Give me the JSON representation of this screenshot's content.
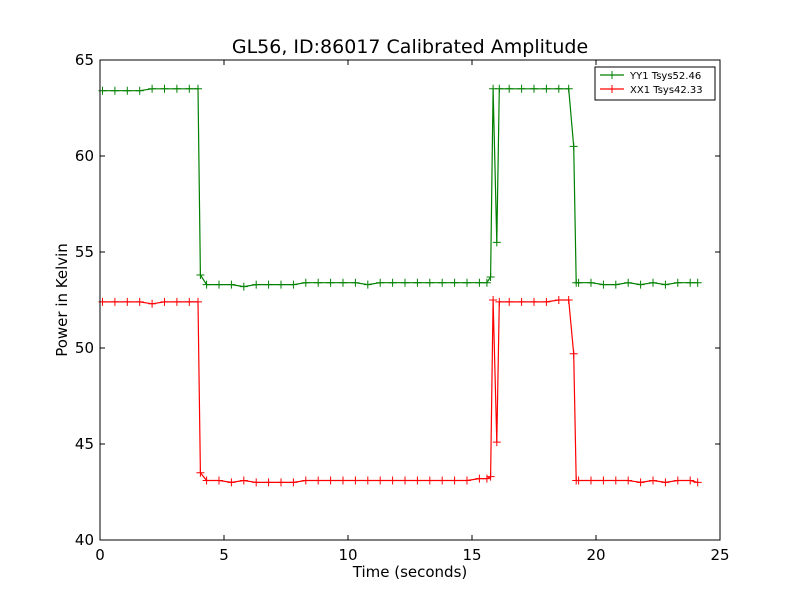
{
  "chart_data": {
    "type": "line",
    "title": "GL56, ID:86017 Calibrated Amplitude",
    "xlabel": "Time (seconds)",
    "ylabel": "Power in Kelvin",
    "xlim": [
      0,
      25
    ],
    "ylim": [
      40,
      65
    ],
    "xticks": [
      0,
      5,
      10,
      15,
      20,
      25
    ],
    "yticks": [
      40,
      45,
      50,
      55,
      60,
      65
    ],
    "grid": false,
    "legend_position": "top-right",
    "series": [
      {
        "name": "YY1 Tsys52.46",
        "color": "#008000",
        "marker": "+",
        "x": [
          0.1,
          0.6,
          1.1,
          1.6,
          2.1,
          2.6,
          3.1,
          3.6,
          3.95,
          4.05,
          4.3,
          4.8,
          5.3,
          5.8,
          6.3,
          6.8,
          7.3,
          7.8,
          8.3,
          8.8,
          9.3,
          9.8,
          10.3,
          10.8,
          11.3,
          11.8,
          12.3,
          12.8,
          13.3,
          13.8,
          14.3,
          14.8,
          15.3,
          15.6,
          15.75,
          15.85,
          16.0,
          16.1,
          16.5,
          17.0,
          17.5,
          18.0,
          18.5,
          18.9,
          19.1,
          19.2,
          19.3,
          19.8,
          20.3,
          20.8,
          21.3,
          21.8,
          22.3,
          22.8,
          23.3,
          23.8,
          24.1
        ],
        "y": [
          63.4,
          63.4,
          63.4,
          63.4,
          63.5,
          63.5,
          63.5,
          63.5,
          63.5,
          53.8,
          53.3,
          53.3,
          53.3,
          53.2,
          53.3,
          53.3,
          53.3,
          53.3,
          53.4,
          53.4,
          53.4,
          53.4,
          53.4,
          53.3,
          53.4,
          53.4,
          53.4,
          53.4,
          53.4,
          53.4,
          53.4,
          53.4,
          53.4,
          53.4,
          53.7,
          63.5,
          55.5,
          63.5,
          63.5,
          63.5,
          63.5,
          63.5,
          63.5,
          63.5,
          60.5,
          53.4,
          53.4,
          53.4,
          53.3,
          53.3,
          53.4,
          53.3,
          53.4,
          53.3,
          53.4,
          53.4,
          53.4
        ]
      },
      {
        "name": "XX1 Tsys42.33",
        "color": "#ff0000",
        "marker": "+",
        "x": [
          0.1,
          0.6,
          1.1,
          1.6,
          2.1,
          2.6,
          3.1,
          3.6,
          3.95,
          4.05,
          4.3,
          4.8,
          5.3,
          5.8,
          6.3,
          6.8,
          7.3,
          7.8,
          8.3,
          8.8,
          9.3,
          9.8,
          10.3,
          10.8,
          11.3,
          11.8,
          12.3,
          12.8,
          13.3,
          13.8,
          14.3,
          14.8,
          15.3,
          15.6,
          15.75,
          15.85,
          16.0,
          16.1,
          16.5,
          17.0,
          17.5,
          18.0,
          18.5,
          18.9,
          19.1,
          19.2,
          19.3,
          19.8,
          20.3,
          20.8,
          21.3,
          21.8,
          22.3,
          22.8,
          23.3,
          23.8,
          24.1
        ],
        "y": [
          52.4,
          52.4,
          52.4,
          52.4,
          52.3,
          52.4,
          52.4,
          52.4,
          52.4,
          43.5,
          43.1,
          43.1,
          43.0,
          43.1,
          43.0,
          43.0,
          43.0,
          43.0,
          43.1,
          43.1,
          43.1,
          43.1,
          43.1,
          43.1,
          43.1,
          43.1,
          43.1,
          43.1,
          43.1,
          43.1,
          43.1,
          43.1,
          43.2,
          43.2,
          43.3,
          52.5,
          45.1,
          52.4,
          52.4,
          52.4,
          52.4,
          52.4,
          52.5,
          52.5,
          49.7,
          43.1,
          43.1,
          43.1,
          43.1,
          43.1,
          43.1,
          43.0,
          43.1,
          43.0,
          43.1,
          43.1,
          43.0
        ]
      }
    ]
  }
}
